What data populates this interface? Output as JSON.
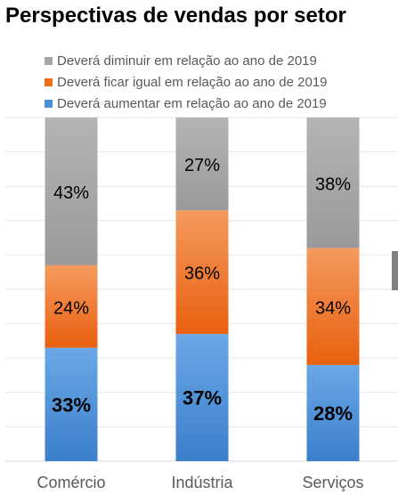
{
  "chart_data": {
    "type": "bar",
    "stacked": true,
    "title": "Perspectivas de vendas por setor",
    "categories": [
      "Comércio",
      "Indústria",
      "Serviços"
    ],
    "series": [
      {
        "name": "Deverá aumentar em relação ao ano de 2019",
        "values": [
          33,
          37,
          28
        ],
        "labels": [
          "33%",
          "37%",
          "28%"
        ],
        "color": "#4a8fd6"
      },
      {
        "name": "Deverá ficar igual em relação ao ano de 2019",
        "values": [
          24,
          36,
          34
        ],
        "labels": [
          "24%",
          "36%",
          "34%"
        ],
        "color": "#ef6f1c"
      },
      {
        "name": "Deverá diminuir em relação ao ano de 2019",
        "values": [
          43,
          27,
          38
        ],
        "labels": [
          "43%",
          "27%",
          "38%"
        ],
        "color": "#a6a6a6"
      }
    ],
    "legend_order": [
      "Deverá diminuir em relação ao ano de 2019",
      "Deverá ficar igual em relação ao ano de 2019",
      "Deverá aumentar em relação ao ano de 2019"
    ],
    "legend_position": "top",
    "ylim": [
      0,
      100
    ],
    "grid": true,
    "xlabel": "",
    "ylabel": ""
  }
}
